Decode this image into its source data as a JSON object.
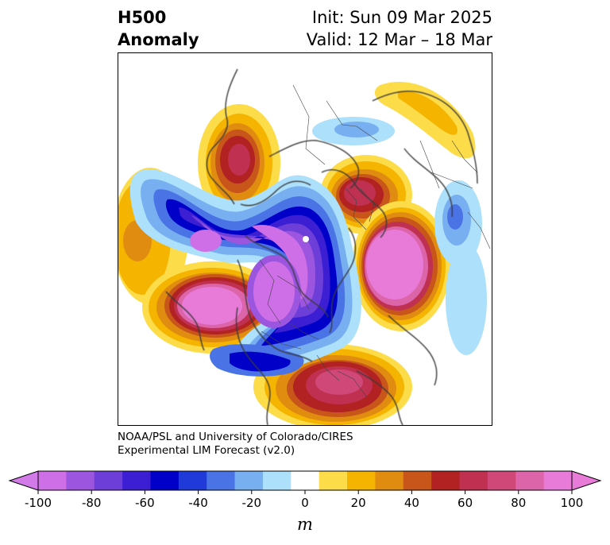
{
  "header": {
    "title_left": [
      "H500",
      "Anomaly"
    ],
    "title_right": [
      "Init: Sun 09 Mar 2025",
      "Valid: 12 Mar – 18 Mar"
    ]
  },
  "credit": {
    "line1": "NOAA/PSL and University of Colorado/CIRES",
    "line2": "Experimental LIM Forecast (v2.0)"
  },
  "colorbar": {
    "units": "m",
    "ticks": [
      "-100",
      "-80",
      "-60",
      "-40",
      "-20",
      "0",
      "20",
      "40",
      "60",
      "80",
      "100"
    ],
    "tick_values": [
      -100,
      -80,
      -60,
      -40,
      -20,
      0,
      20,
      40,
      60,
      80,
      100
    ],
    "levels_colors": [
      "#cf6fe8",
      "#9b55df",
      "#6e3ed8",
      "#3c1fd2",
      "#0000c8",
      "#1f3ad8",
      "#4a74e6",
      "#78aff0",
      "#ace0fb",
      "#ffffff",
      "#fddc4a",
      "#f4b400",
      "#e08c10",
      "#c8551a",
      "#b22222",
      "#c03050",
      "#d04878",
      "#dc64a8",
      "#e87ad8"
    ],
    "extend_low_color": "#d27ae8",
    "extend_high_color": "#e87ad8"
  }
}
